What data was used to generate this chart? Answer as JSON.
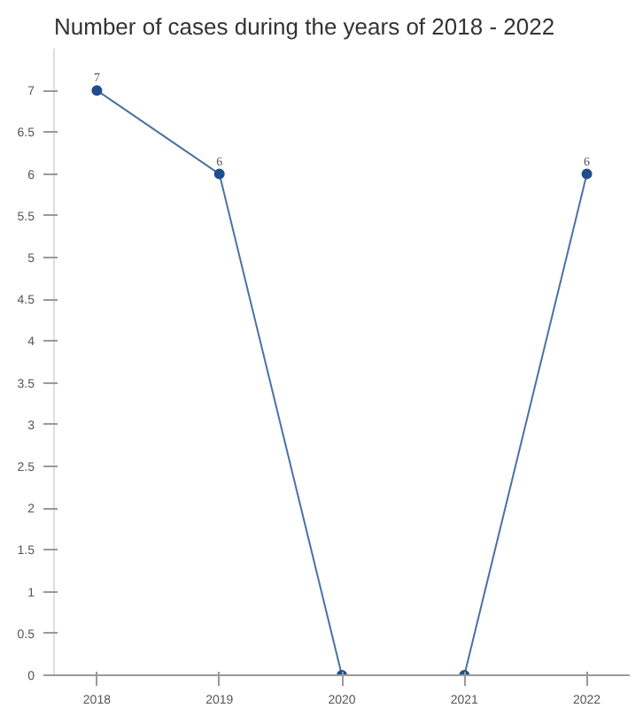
{
  "chart_data": {
    "type": "line",
    "title": "Number of cases during the years of 2018 - 2022",
    "categories": [
      "2018",
      "2019",
      "2020",
      "2021",
      "2022"
    ],
    "series": [
      {
        "color": "#1f4e8c",
        "values": [
          7,
          6,
          0,
          0,
          6
        ]
      }
    ],
    "value_labels": [
      "7",
      "6",
      null,
      null,
      "6"
    ],
    "ylim": [
      0,
      7.5
    ],
    "yticks": [
      0,
      0.5,
      1,
      1.5,
      2,
      2.5,
      3,
      3.5,
      4,
      4.5,
      5,
      5.5,
      6,
      6.5,
      7
    ],
    "marker": "circle",
    "line_style": "solid",
    "grid": false
  }
}
